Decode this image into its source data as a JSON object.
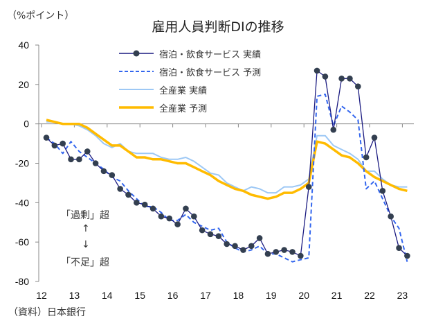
{
  "chart_data": {
    "type": "line",
    "title": "雇用人員判断DIの推移",
    "unit_label": "（%ポイント）",
    "source": "（資料）日本銀行",
    "xlabel": "",
    "ylabel": "%ポイント",
    "ylim": [
      -80,
      40
    ],
    "yticks": [
      40,
      20,
      0,
      -20,
      -40,
      -60,
      -80
    ],
    "xticks": [
      "12",
      "13",
      "14",
      "15",
      "16",
      "17",
      "18",
      "19",
      "20",
      "21",
      "22",
      "23"
    ],
    "x_start": "2012Q1",
    "x_frequency": "quarterly",
    "legend_position": "top-center",
    "annotations": {
      "surplus": "「過剰」超",
      "arrow_up": "↑",
      "arrow_down": "↓",
      "shortage": "「不足」超"
    },
    "series": [
      {
        "name": "宿泊・飲食サービス 実績",
        "color": "#1a1a80",
        "marker_color": "#333f50",
        "style": "solid-marker",
        "values": [
          -7,
          -11,
          -10,
          -18,
          -18,
          -14,
          -20,
          -24,
          -26,
          -33,
          -36,
          -40,
          -41,
          -43,
          -47,
          -48,
          -51,
          -43,
          -47,
          -54,
          -56,
          -57,
          -61,
          -62,
          -64,
          -62,
          -58,
          -66,
          -65,
          -64,
          -65,
          -67,
          -32,
          27,
          24,
          -3,
          23,
          23,
          19,
          -17,
          -7,
          -34,
          -47,
          -63,
          -67
        ]
      },
      {
        "name": "宿泊・飲食サービス 予測",
        "color": "#3366ee",
        "style": "dashed",
        "values": [
          -7,
          -10,
          -15,
          -9,
          -14,
          -17,
          -20,
          -23,
          -27,
          -29,
          -34,
          -38,
          -42,
          -42,
          -45,
          -49,
          -49,
          -46,
          -50,
          -52,
          -54,
          -53,
          -60,
          -63,
          -65,
          -64,
          -62,
          -66,
          -66,
          -68,
          -70,
          -69,
          -68,
          14,
          15,
          -1,
          9,
          6,
          2,
          -33,
          -29,
          -38,
          -47,
          -53,
          -70
        ]
      },
      {
        "name": "全産業 実績",
        "color": "#9dc8f5",
        "style": "solid",
        "values": [
          1,
          1,
          0,
          0,
          -1,
          -3,
          -6,
          -10,
          -12,
          -10,
          -14,
          -15,
          -15,
          -15,
          -17,
          -18,
          -18,
          -17,
          -19,
          -22,
          -25,
          -26,
          -30,
          -32,
          -34,
          -32,
          -33,
          -35,
          -35,
          -32,
          -32,
          -31,
          -28,
          -6,
          -6,
          -11,
          -13,
          -15,
          -18,
          -24,
          -24,
          -28,
          -31,
          -32,
          -32
        ]
      },
      {
        "name": "全産業 予測",
        "color": "#ffbb00",
        "style": "solid-thick",
        "values": [
          2,
          1,
          0,
          0,
          0,
          -2,
          -5,
          -8,
          -11,
          -11,
          -14,
          -17,
          -17,
          -18,
          -18,
          -19,
          -20,
          -20,
          -22,
          -24,
          -26,
          -29,
          -31,
          -33,
          -34,
          -36,
          -37,
          -38,
          -37,
          -35,
          -35,
          -33,
          -30,
          -9,
          -10,
          -13,
          -16,
          -17,
          -20,
          -24,
          -27,
          -29,
          -31,
          -33,
          -34
        ]
      }
    ]
  }
}
